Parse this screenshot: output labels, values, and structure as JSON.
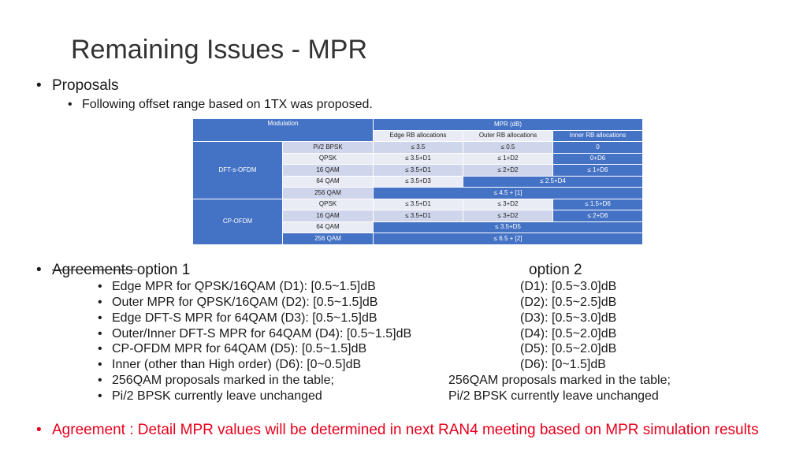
{
  "title": "Remaining Issues - MPR",
  "proposals": {
    "label": "Proposals",
    "sub": "Following offset range based on 1TX was proposed."
  },
  "table": {
    "header": {
      "modulation": "Modulation",
      "mpr": "MPR (dB)",
      "edge": "Edge RB allocations",
      "outer": "Outer RB allocations",
      "inner": "Inner RB allocations"
    },
    "dft_group": "DFT-s-OFDM",
    "cp_group": "CP-OFDM",
    "rows": {
      "pi2": {
        "mod": "Pi/2 BPSK",
        "edge": "≤ 3.5",
        "outer": "≤ 0.5",
        "inner": "0"
      },
      "dft_qpsk": {
        "mod": "QPSK",
        "edge": "≤ 3.5+D1",
        "outer": "≤ 1+D2",
        "inner": "0+D6"
      },
      "dft_16qam": {
        "mod": "16 QAM",
        "edge": "≤ 3.5+D1",
        "outer": "≤ 2+D2",
        "inner": "≤ 1+D6"
      },
      "dft_64qam": {
        "mod": "64 QAM",
        "edge": "≤ 3.5+D3",
        "outer_inner": "≤ 2.5+D4"
      },
      "dft_256qam": {
        "mod": "256 QAM",
        "all": "≤ 4.5 + [1]"
      },
      "cp_qpsk": {
        "mod": "QPSK",
        "edge": "≤ 3.5+D1",
        "outer": "≤ 3+D2",
        "inner": "≤ 1.5+D6"
      },
      "cp_16qam": {
        "mod": "16 QAM",
        "edge": "≤ 3.5+D1",
        "outer": "≤ 3+D2",
        "inner": "≤ 2+D6"
      },
      "cp_64qam": {
        "mod": "64 QAM",
        "all": "≤ 3.5+D5"
      },
      "cp_256qam": {
        "mod": "256 QAM",
        "all": "≤ 6.5 + [2]"
      }
    }
  },
  "agreements": {
    "label_struck": "Agreements ",
    "option1": "option 1",
    "option2": "option 2",
    "items": [
      {
        "left": "Edge MPR for QPSK/16QAM  (D1):  [0.5~1.5]dB",
        "right": "(D1):  [0.5~3.0]dB"
      },
      {
        "left": "Outer MPR for QPSK/16QAM  (D2):  [0.5~1.5]dB",
        "right": "(D2):  [0.5~2.5]dB"
      },
      {
        "left": "Edge DFT-S MPR for 64QAM  (D3):  [0.5~1.5]dB",
        "right": "(D3):  [0.5~3.0]dB"
      },
      {
        "left": "Outer/Inner DFT-S MPR for 64QAM  (D4):  [0.5~1.5]dB",
        "right": "(D4):  [0.5~2.0]dB"
      },
      {
        "left": "CP-OFDM MPR for 64QAM  (D5):  [0.5~1.5]dB",
        "right": "(D5):  [0.5~2.0]dB"
      },
      {
        "left": "Inner (other than High order) (D6): [0~0.5]dB",
        "right": "(D6): [0~1.5]dB"
      },
      {
        "left": "256QAM proposals marked in the table;",
        "right": "256QAM proposals marked in the table;"
      },
      {
        "left": "Pi/2 BPSK currently leave unchanged",
        "right": "Pi/2 BPSK currently leave unchanged"
      }
    ]
  },
  "agreement_final": "Agreement : Detail MPR values will be determined in next RAN4 meeting based on MPR simulation results",
  "colors": {
    "table_blue": "#4472c4",
    "table_light": "#cfd5ea",
    "red": "#e8001c"
  }
}
